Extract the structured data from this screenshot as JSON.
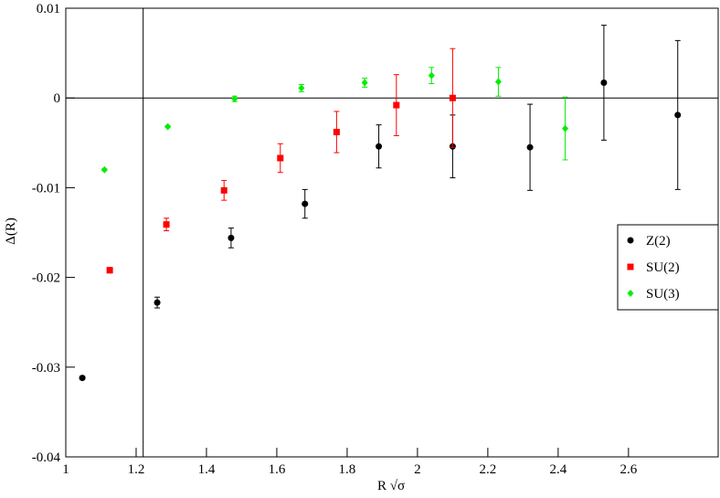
{
  "chart_data": {
    "type": "scatter",
    "x_label": "R √σ",
    "y_label": "Δ(R)",
    "xlim": [
      1,
      2.855
    ],
    "ylim": [
      -0.04,
      0.01
    ],
    "xticks": [
      1,
      1.2,
      1.4,
      1.6,
      1.8,
      2,
      2.2,
      2.4,
      2.6
    ],
    "yticks": [
      -0.04,
      -0.03,
      -0.02,
      -0.01,
      0,
      0.01
    ],
    "vline": 1.22,
    "hline": 0,
    "legend": "right",
    "series": [
      {
        "name": "Z(2)",
        "color": "#000000",
        "marker": "circle",
        "x": [
          1.047,
          1.26,
          1.47,
          1.68,
          1.89,
          2.1,
          2.32,
          2.53,
          2.74
        ],
        "values": [
          -0.0312,
          -0.0228,
          -0.0156,
          -0.0118,
          -0.0054,
          -0.0054,
          -0.0055,
          0.0017,
          -0.0019
        ],
        "errors": [
          0.0002,
          0.0006,
          0.0011,
          0.0016,
          0.0024,
          0.0035,
          0.0048,
          0.0064,
          0.0083
        ]
      },
      {
        "name": "SU(2)",
        "color": "#ff0000",
        "marker": "square",
        "x": [
          1.125,
          1.286,
          1.45,
          1.61,
          1.77,
          1.94,
          2.1
        ],
        "values": [
          -0.0192,
          -0.0141,
          -0.0103,
          -0.0067,
          -0.0038,
          -0.0008,
          0.0
        ],
        "errors": [
          0.0003,
          0.0007,
          0.0011,
          0.0016,
          0.0023,
          0.0034,
          0.0055
        ]
      },
      {
        "name": "SU(3)",
        "color": "#00ee00",
        "marker": "diamond",
        "x": [
          1.11,
          1.29,
          1.48,
          1.67,
          1.85,
          2.04,
          2.23,
          2.42
        ],
        "values": [
          -0.008,
          -0.0032,
          -0.0001,
          0.0011,
          0.0017,
          0.0025,
          0.0018,
          -0.0034
        ],
        "errors": [
          0.0001,
          0.0001,
          0.0003,
          0.0004,
          0.0005,
          0.0009,
          0.0016,
          0.0035
        ]
      }
    ]
  }
}
